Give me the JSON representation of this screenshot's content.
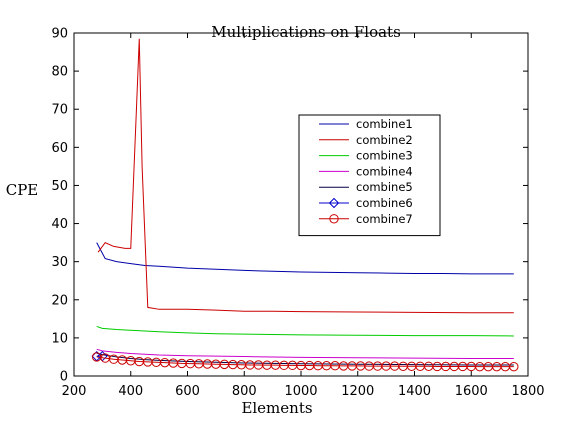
{
  "chart_data": {
    "type": "line",
    "title": "Multiplications on Floats",
    "xlabel": "Elements",
    "ylabel": "CPE",
    "xlim": [
      200,
      1800
    ],
    "ylim": [
      0,
      90
    ],
    "xticks": [
      200,
      400,
      600,
      800,
      1000,
      1200,
      1400,
      1600,
      1800
    ],
    "yticks": [
      0,
      10,
      20,
      30,
      40,
      50,
      60,
      70,
      80,
      90
    ],
    "grid": false,
    "legend_position": "upper-right",
    "series": [
      {
        "name": "combine1",
        "color": "#0000aa",
        "marker": "none",
        "x": [
          280,
          310,
          350,
          400,
          450,
          500,
          600,
          700,
          800,
          900,
          1000,
          1100,
          1200,
          1300,
          1400,
          1500,
          1600,
          1750
        ],
        "y": [
          35,
          30.8,
          30,
          29.5,
          29,
          28.8,
          28.3,
          28,
          27.7,
          27.5,
          27.3,
          27.2,
          27.1,
          27,
          26.9,
          26.9,
          26.8,
          26.8
        ]
      },
      {
        "name": "combine2",
        "color": "#cc0000",
        "marker": "none",
        "x": [
          285,
          310,
          340,
          380,
          400,
          420,
          430,
          440,
          460,
          500,
          600,
          700,
          800,
          900,
          1000,
          1200,
          1400,
          1600,
          1750
        ],
        "y": [
          32.5,
          35,
          34,
          33.5,
          33.5,
          70,
          88.5,
          55,
          18,
          17.5,
          17.5,
          17.3,
          17,
          17,
          16.9,
          16.8,
          16.7,
          16.6,
          16.6
        ]
      },
      {
        "name": "combine3",
        "color": "#00cc00",
        "marker": "none",
        "x": [
          280,
          300,
          350,
          400,
          450,
          500,
          600,
          700,
          800,
          900,
          1000,
          1200,
          1400,
          1600,
          1750
        ],
        "y": [
          13,
          12.5,
          12.2,
          12,
          11.8,
          11.6,
          11.3,
          11.1,
          11,
          10.9,
          10.8,
          10.7,
          10.6,
          10.6,
          10.5
        ]
      },
      {
        "name": "combine4",
        "color": "#cc00cc",
        "marker": "none",
        "x": [
          280,
          300,
          350,
          400,
          450,
          500,
          600,
          700,
          800,
          900,
          1000,
          1200,
          1400,
          1600,
          1750
        ],
        "y": [
          7,
          6.6,
          6.2,
          5.9,
          5.7,
          5.5,
          5.3,
          5.2,
          5.1,
          5,
          4.9,
          4.8,
          4.7,
          4.6,
          4.6
        ]
      },
      {
        "name": "combine5",
        "color": "#000044",
        "marker": "none",
        "x": [
          280,
          300,
          350,
          400,
          450,
          500,
          600,
          700,
          800,
          900,
          1000,
          1200,
          1400,
          1600,
          1750
        ],
        "y": [
          6,
          5.6,
          5,
          4.6,
          4.3,
          4.1,
          3.8,
          3.6,
          3.4,
          3.3,
          3.2,
          3.1,
          3,
          2.9,
          2.9
        ]
      },
      {
        "name": "combine6",
        "color": "#0000cc",
        "marker": "diamond",
        "x": [
          280,
          300
        ],
        "y": [
          5.2,
          5.2
        ]
      },
      {
        "name": "combine7",
        "color": "#cc0000",
        "marker": "circle",
        "x": [
          280,
          310,
          340,
          370,
          400,
          430,
          460,
          490,
          520,
          550,
          580,
          610,
          640,
          670,
          700,
          730,
          760,
          790,
          820,
          850,
          880,
          910,
          940,
          970,
          1000,
          1030,
          1060,
          1090,
          1120,
          1150,
          1180,
          1210,
          1240,
          1270,
          1300,
          1330,
          1360,
          1390,
          1420,
          1450,
          1480,
          1510,
          1540,
          1570,
          1600,
          1630,
          1660,
          1690,
          1720,
          1750
        ],
        "y": [
          5,
          4.7,
          4.4,
          4.2,
          4,
          3.8,
          3.7,
          3.6,
          3.5,
          3.4,
          3.3,
          3.25,
          3.2,
          3.15,
          3.1,
          3.05,
          3,
          2.95,
          2.9,
          2.9,
          2.85,
          2.85,
          2.8,
          2.8,
          2.75,
          2.75,
          2.7,
          2.7,
          2.7,
          2.65,
          2.65,
          2.65,
          2.6,
          2.6,
          2.6,
          2.6,
          2.55,
          2.55,
          2.55,
          2.55,
          2.5,
          2.5,
          2.5,
          2.5,
          2.5,
          2.45,
          2.45,
          2.45,
          2.45,
          2.45
        ]
      }
    ]
  }
}
